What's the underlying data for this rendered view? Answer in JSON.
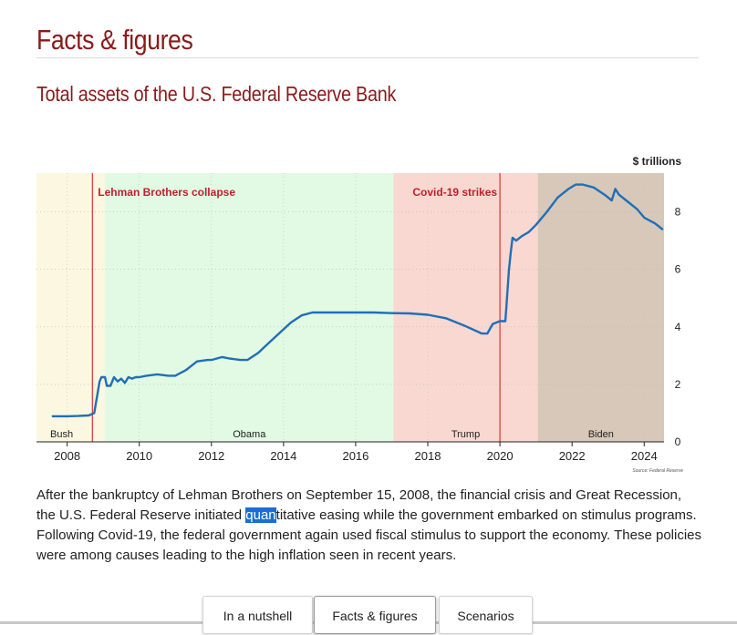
{
  "page": {
    "section_title": "Facts & figures",
    "paragraph": {
      "before": "After the bankruptcy of Lehman Brothers on September 15, 2008, the financial crisis and Great Recession, the U.S. Federal Reserve initiated ",
      "highlighted": "quan",
      "after": "titative easing while the government embarked on stimulus programs. Following Covid-19, the federal government again used fiscal stimulus to support the economy. These policies were among causes leading to the high inflation seen in recent years."
    }
  },
  "tabs": [
    {
      "label": "In a nutshell",
      "active": false
    },
    {
      "label": "Facts & figures",
      "active": true
    },
    {
      "label": "Scenarios",
      "active": false
    }
  ],
  "colors": {
    "title": "#8b1a1a",
    "line": "#1f6fb8",
    "event_line": "#e03030",
    "event_text": "#c0202b",
    "bush": "#fbf7e1",
    "obama": "#e2f9e3",
    "trump": "#f9d8d2",
    "biden": "#d8c8b9"
  },
  "chart_data": {
    "type": "line",
    "title": "Total assets of the U.S. Federal Reserve Bank",
    "ylabel": "$ trillions",
    "xlim": [
      2007.15,
      2024.55
    ],
    "ylim": [
      0,
      9.35
    ],
    "x_ticks": [
      2008,
      2010,
      2012,
      2014,
      2016,
      2018,
      2020,
      2022,
      2024
    ],
    "y_ticks": [
      0,
      2,
      4,
      6,
      8
    ],
    "source": "Source: Federal Reserve",
    "periods": [
      {
        "label": "Bush",
        "start": 2007.15,
        "end": 2009.05,
        "color_key": "bush"
      },
      {
        "label": "Obama",
        "start": 2009.05,
        "end": 2017.05,
        "color_key": "obama"
      },
      {
        "label": "Trump",
        "start": 2017.05,
        "end": 2021.05,
        "color_key": "trump"
      },
      {
        "label": "Biden",
        "start": 2021.05,
        "end": 2024.55,
        "color_key": "biden"
      }
    ],
    "events": [
      {
        "label": "Lehman Brothers collapse",
        "x": 2008.7
      },
      {
        "label": "Covid-19 strikes",
        "x": 2020.0
      }
    ],
    "series": [
      {
        "name": "Total assets",
        "x": [
          2007.6,
          2008.0,
          2008.3,
          2008.6,
          2008.75,
          2008.9,
          2008.95,
          2009.05,
          2009.1,
          2009.2,
          2009.3,
          2009.4,
          2009.5,
          2009.6,
          2009.7,
          2009.8,
          2009.9,
          2010.0,
          2010.2,
          2010.5,
          2010.8,
          2011.0,
          2011.3,
          2011.6,
          2011.9,
          2012.0,
          2012.3,
          2012.5,
          2012.8,
          2013.0,
          2013.3,
          2013.6,
          2013.9,
          2014.2,
          2014.5,
          2014.8,
          2015.0,
          2015.5,
          2016.0,
          2016.5,
          2017.0,
          2017.5,
          2018.0,
          2018.5,
          2019.0,
          2019.5,
          2019.65,
          2019.8,
          2020.0,
          2020.15,
          2020.18,
          2020.25,
          2020.3,
          2020.35,
          2020.45,
          2020.6,
          2020.8,
          2021.0,
          2021.3,
          2021.6,
          2021.9,
          2022.1,
          2022.3,
          2022.6,
          2022.9,
          2023.1,
          2023.2,
          2023.3,
          2023.5,
          2023.8,
          2024.0,
          2024.3,
          2024.5
        ],
        "values": [
          0.89,
          0.89,
          0.9,
          0.92,
          1.0,
          2.1,
          2.25,
          2.25,
          1.95,
          1.95,
          2.25,
          2.1,
          2.2,
          2.05,
          2.25,
          2.2,
          2.25,
          2.25,
          2.3,
          2.35,
          2.3,
          2.3,
          2.5,
          2.8,
          2.85,
          2.85,
          2.95,
          2.9,
          2.85,
          2.85,
          3.1,
          3.45,
          3.8,
          4.15,
          4.4,
          4.5,
          4.5,
          4.5,
          4.5,
          4.5,
          4.48,
          4.47,
          4.42,
          4.3,
          4.05,
          3.77,
          3.77,
          4.1,
          4.2,
          4.2,
          4.7,
          6.0,
          6.6,
          7.1,
          7.0,
          7.15,
          7.3,
          7.55,
          8.0,
          8.5,
          8.8,
          8.95,
          8.95,
          8.85,
          8.6,
          8.4,
          8.8,
          8.6,
          8.4,
          8.1,
          7.8,
          7.6,
          7.4
        ]
      }
    ]
  }
}
